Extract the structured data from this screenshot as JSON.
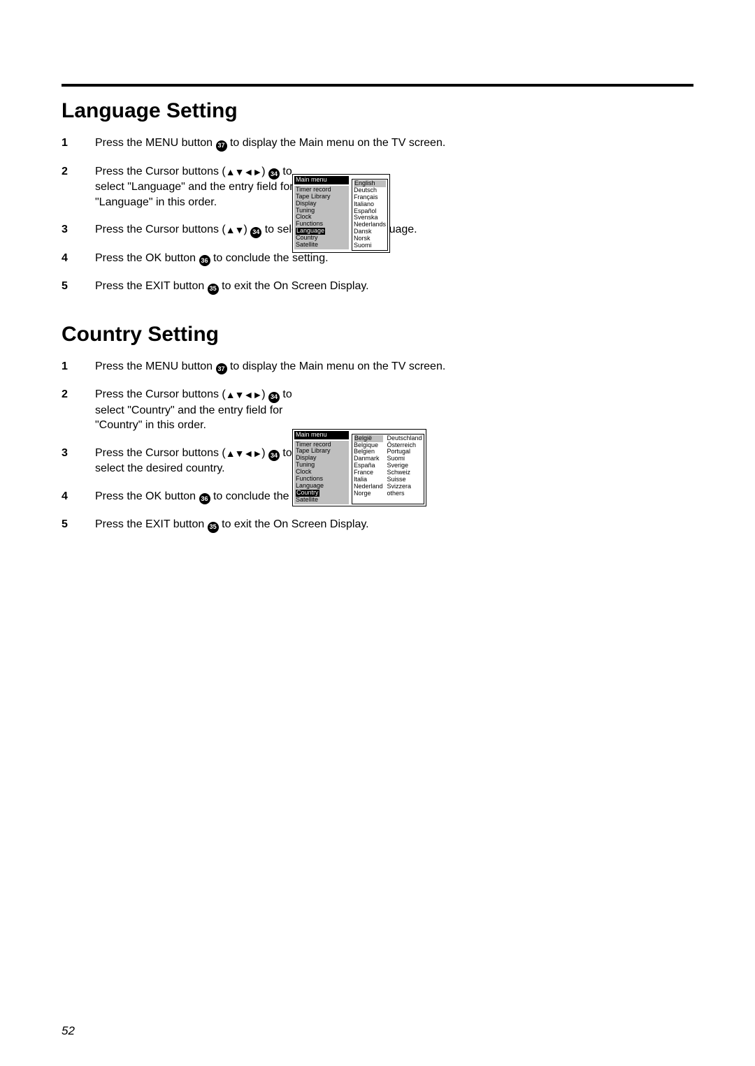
{
  "page_number": "52",
  "arrows4": "▲▼◄►",
  "arrows2": "▲▼",
  "refs": {
    "r34": "34",
    "r35": "35",
    "r36": "36",
    "r37": "37"
  },
  "language": {
    "heading": "Language Setting",
    "steps": {
      "s1": {
        "a": "Press the MENU button ",
        "b": " to display the Main menu on the TV screen."
      },
      "s2": {
        "a": "Press the Cursor buttons (",
        "b": ") ",
        "c": " to select \"Language\" and the entry field for \"Language\" in this order."
      },
      "s3": {
        "a": "Press the Cursor buttons (",
        "b": ") ",
        "c": " to select the desired language."
      },
      "s4": {
        "a": "Press the OK button ",
        "b": " to conclude the setting."
      },
      "s5": {
        "a": "Press the EXIT button ",
        "b": " to exit the On Screen Display."
      }
    },
    "menu": {
      "header": "Main menu",
      "items": [
        "Timer record",
        "Tape Library",
        "Display",
        "Tuning",
        "Clock",
        "Functions",
        "Language",
        "Country",
        "Satellite"
      ],
      "highlight": "Language",
      "options": [
        "English",
        "Deutsch",
        "Français",
        "Italiano",
        "Español",
        "Svenska",
        "Nederlands",
        "Dansk",
        "Norsk",
        "Suomi"
      ],
      "option_highlight": "English"
    }
  },
  "country": {
    "heading": "Country Setting",
    "steps": {
      "s1": {
        "a": "Press the MENU button ",
        "b": " to display the Main menu on the TV screen."
      },
      "s2": {
        "a": "Press the Cursor buttons (",
        "b": ") ",
        "c": " to select \"Country\" and the entry field for \"Country\" in this order."
      },
      "s3": {
        "a": "Press the Cursor buttons (",
        "b": ") ",
        "c": " to select the desired country."
      },
      "s4": {
        "a": "Press the OK button ",
        "b": " to conclude the setting."
      },
      "s5": {
        "a": "Press the EXIT button ",
        "b": " to exit the On Screen Display."
      }
    },
    "menu": {
      "header": "Main menu",
      "items": [
        "Timer record",
        "Tape Library",
        "Display",
        "Tuning",
        "Clock",
        "Functions",
        "Language",
        "Country",
        "Satellite"
      ],
      "highlight": "Country",
      "options_col1": [
        "België",
        "Belgique",
        "Belgien",
        "Danmark",
        "España",
        "France",
        "Italia",
        "Nederland",
        "Norge"
      ],
      "options_col2": [
        "Deutschland",
        "Österreich",
        "Portugal",
        "Suomi",
        "Sverige",
        "Schweiz",
        "Suisse",
        "Svizzera",
        "others"
      ],
      "option_highlight": "België"
    }
  }
}
